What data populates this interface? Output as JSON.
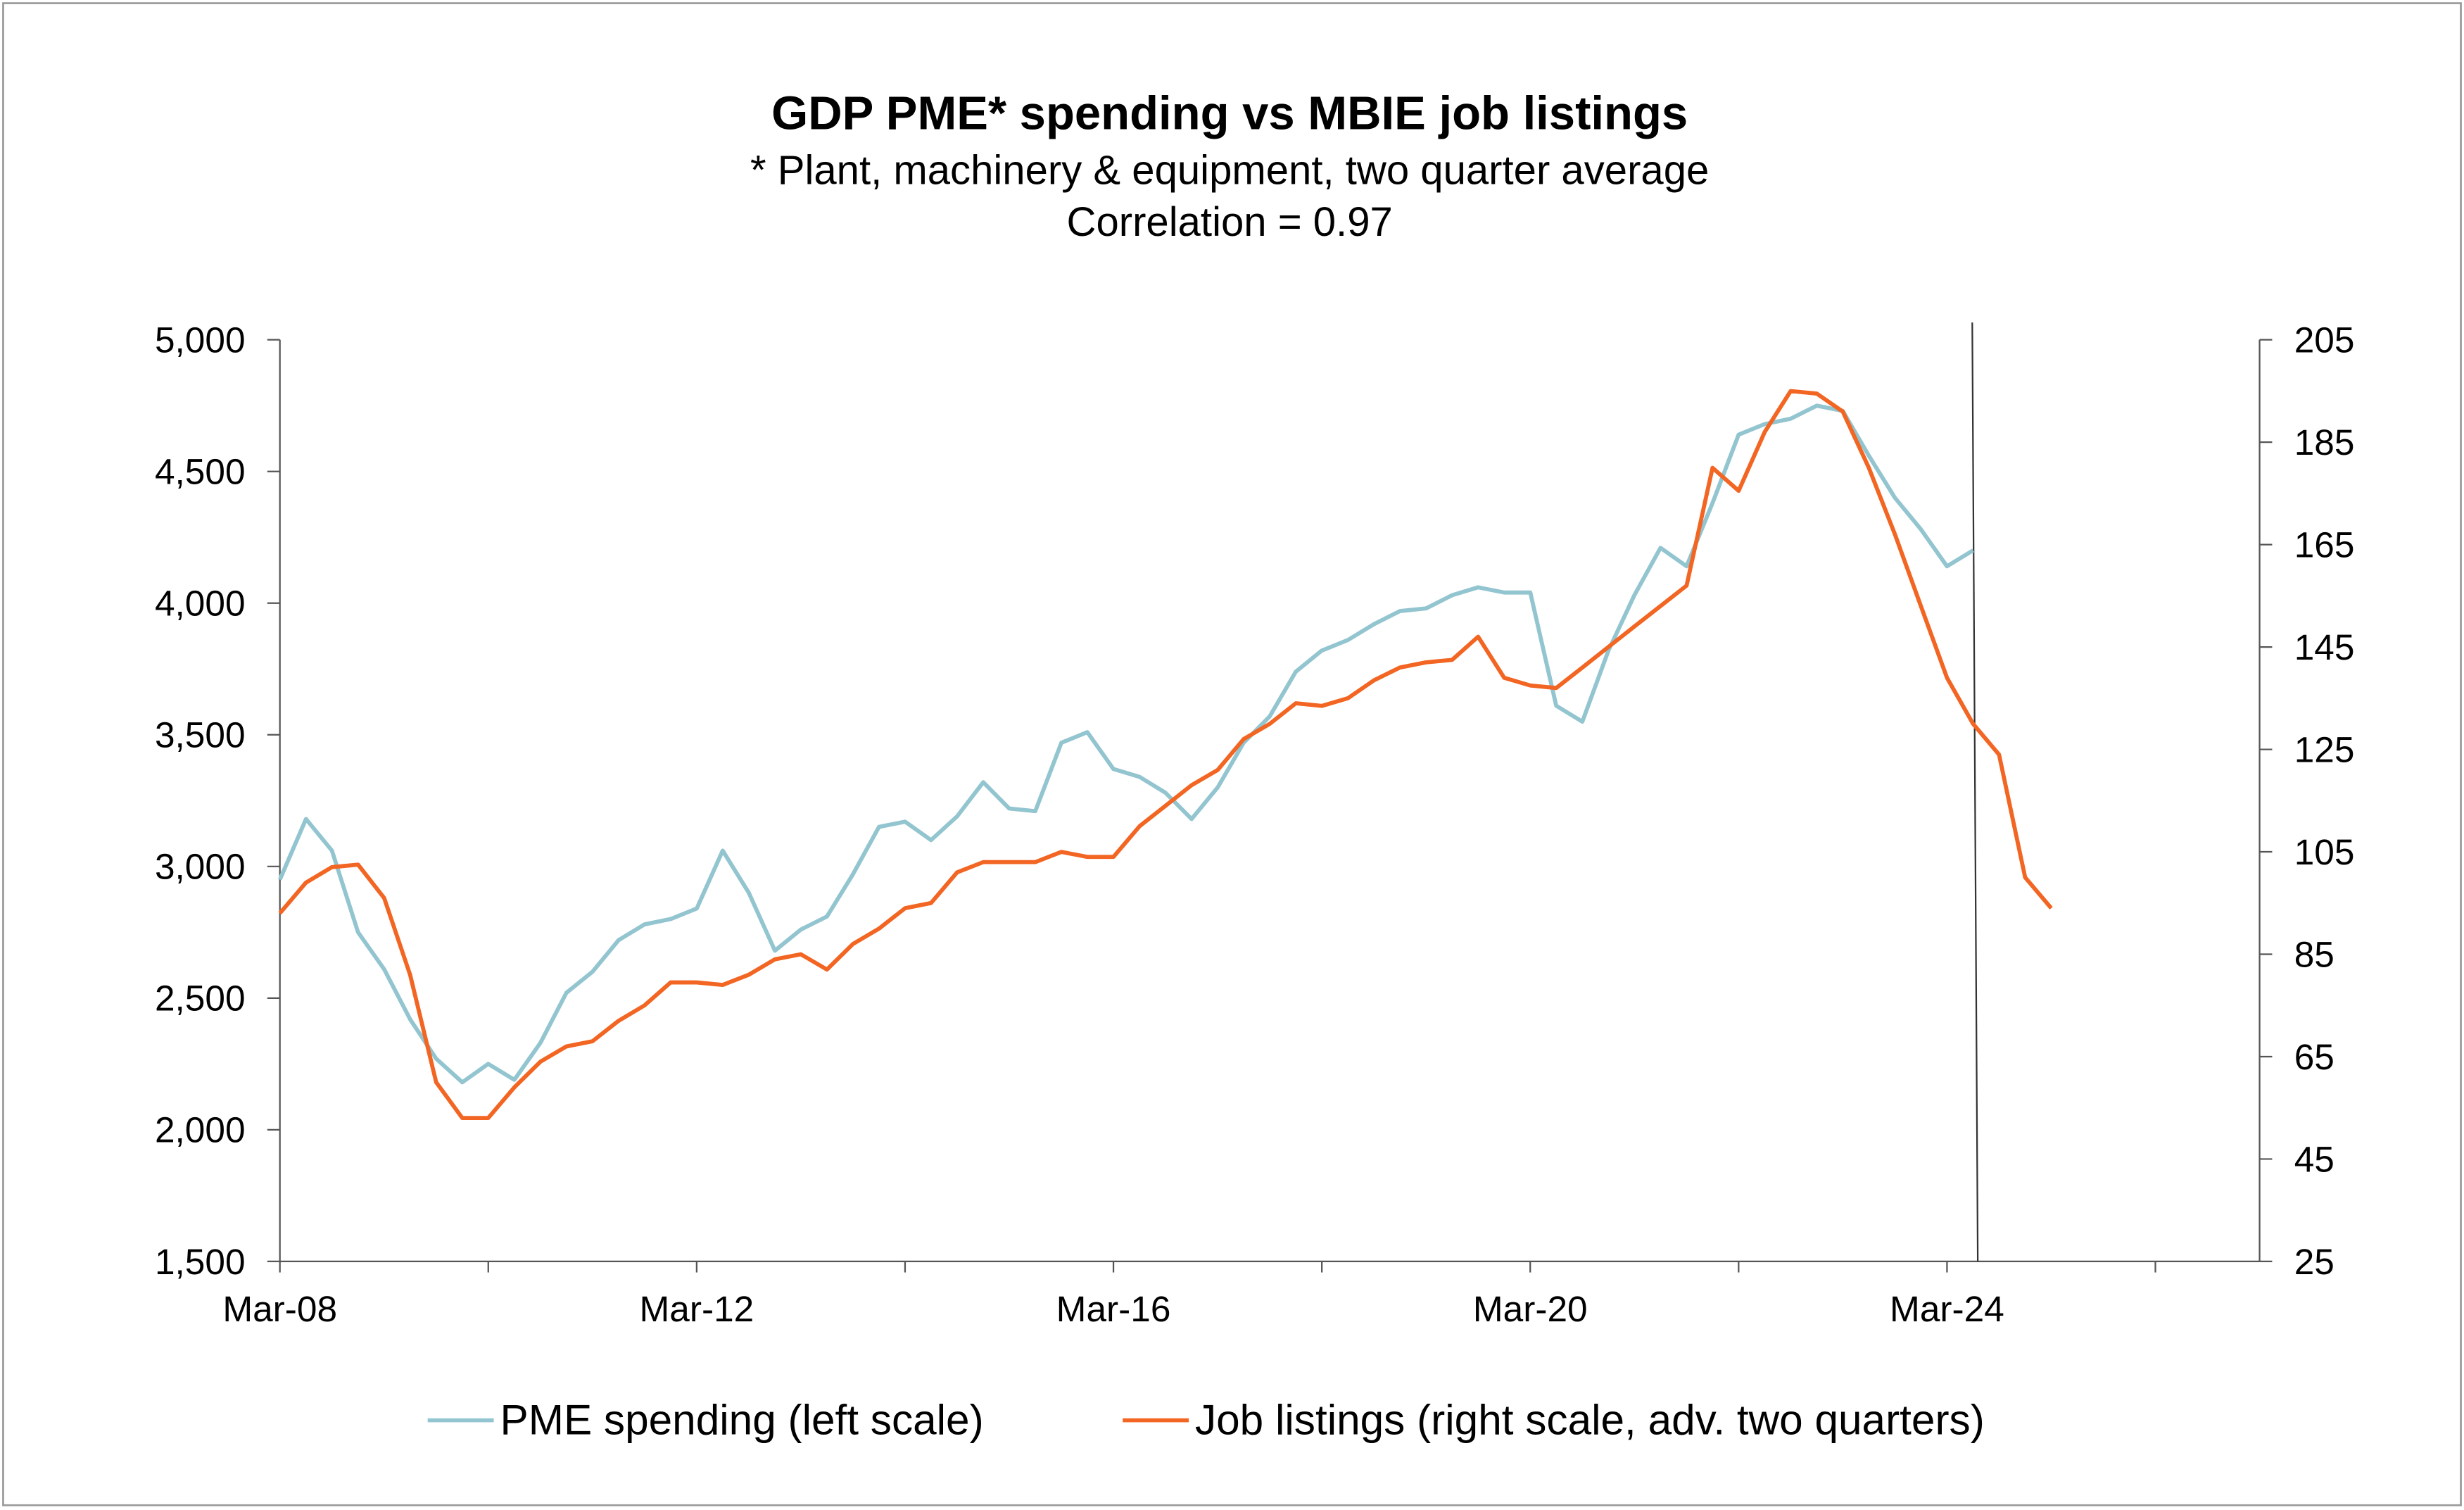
{
  "chart_data": {
    "type": "line",
    "title": "GDP PME* spending vs MBIE job listings",
    "subtitle": "* Plant, machinery & equipment, two quarter average",
    "annotation": "Correlation = 0.97",
    "x_start": "Mar-08",
    "x_frequency": "quarterly",
    "x_tick_labels": [
      "Mar-08",
      "Mar-12",
      "Mar-16",
      "Mar-20",
      "Mar-24"
    ],
    "x_range": [
      "Mar-08",
      "Mar-27"
    ],
    "y_left": {
      "range": [
        1500,
        5000
      ],
      "ticks": [
        "1,500",
        "2,000",
        "2,500",
        "3,000",
        "3,500",
        "4,000",
        "4,500",
        "5,000"
      ]
    },
    "y_right": {
      "range": [
        25,
        205
      ],
      "ticks": [
        "25",
        "45",
        "65",
        "85",
        "105",
        "125",
        "145",
        "165",
        "185",
        "205"
      ]
    },
    "vertical_marker": "Jun-24",
    "grid": false,
    "legend_position": "bottom",
    "series": [
      {
        "name": "PME spending (left scale)",
        "axis": "left",
        "color": "#92c5cf",
        "values": [
          2950,
          3180,
          3060,
          2750,
          2610,
          2420,
          2270,
          2180,
          2250,
          2190,
          2330,
          2520,
          2600,
          2720,
          2780,
          2800,
          2840,
          3060,
          2900,
          2680,
          2760,
          2810,
          2970,
          3150,
          3170,
          3100,
          3190,
          3320,
          3220,
          3210,
          3470,
          3510,
          3370,
          3340,
          3280,
          3180,
          3300,
          3470,
          3570,
          3740,
          3820,
          3860,
          3920,
          3970,
          3980,
          4030,
          4060,
          4040,
          4040,
          3610,
          3550,
          3820,
          4030,
          4210,
          4140,
          4380,
          4640,
          4680,
          4700,
          4750,
          4730,
          4560,
          4400,
          4280,
          4140,
          4200
        ]
      },
      {
        "name": "Job listings (right scale, adv. two quarters)",
        "axis": "right",
        "color": "#f26522",
        "values": [
          93,
          99,
          102,
          102.5,
          96,
          81,
          60,
          53,
          53,
          59,
          64,
          67,
          68,
          72,
          75,
          79.5,
          79.5,
          79,
          81,
          84,
          85,
          82,
          87,
          90,
          94,
          95,
          101,
          103,
          103,
          103,
          105,
          104,
          104,
          110,
          114,
          118,
          121,
          127,
          130,
          134,
          133.5,
          135,
          138.5,
          141,
          142,
          142.5,
          147,
          139,
          137.5,
          137,
          141,
          145,
          149,
          153,
          157,
          180,
          175.5,
          187,
          195,
          194.5,
          191,
          180,
          167,
          153,
          139,
          130,
          124,
          100,
          94
        ]
      }
    ]
  }
}
